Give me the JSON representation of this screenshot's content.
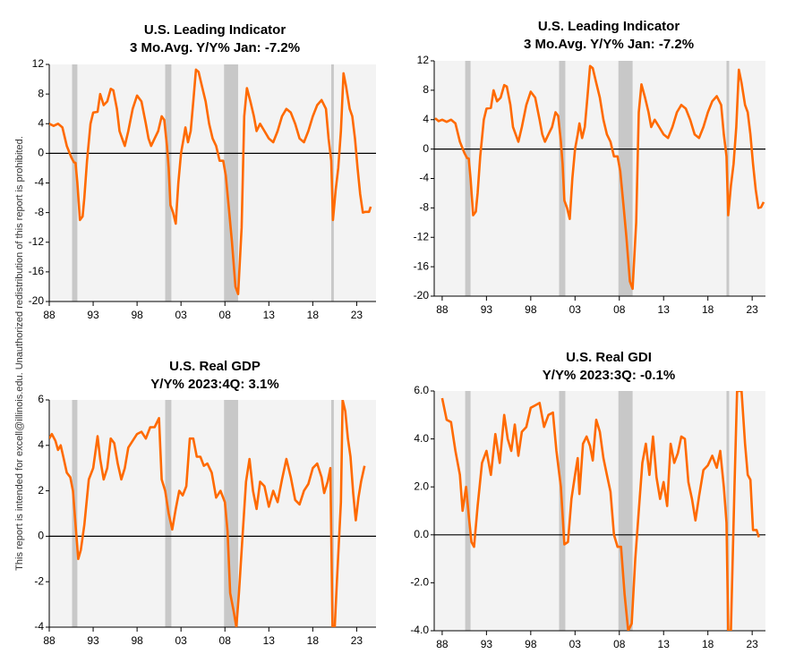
{
  "watermark": "This report is intended for excell@illinois.edu. Unauthorized redistribution of this report is prohibited.",
  "chart_data": [
    {
      "type": "line",
      "title": "U.S. Leading Indicator",
      "subtitle": "3 Mo.Avg. Y/Y%   Jan: -7.2%",
      "color": "#ff6a00",
      "recession_color": "#c8c8c8",
      "xlim": [
        1988,
        2025.2
      ],
      "ylim": [
        -20,
        12
      ],
      "xticks": [
        {
          "value": 1988,
          "label": "88"
        },
        {
          "value": 1993,
          "label": "93"
        },
        {
          "value": 1998,
          "label": "98"
        },
        {
          "value": 2003,
          "label": "03"
        },
        {
          "value": 2008,
          "label": "08"
        },
        {
          "value": 2013,
          "label": "13"
        },
        {
          "value": 2018,
          "label": "18"
        },
        {
          "value": 2023,
          "label": "23"
        }
      ],
      "yticks": [
        12,
        8,
        4,
        0,
        -4,
        -8,
        -12,
        -16,
        -20
      ],
      "recessions": [
        [
          1990.6,
          1991.2
        ],
        [
          2001.2,
          2001.9
        ],
        [
          2007.9,
          2009.5
        ],
        [
          2020.1,
          2020.4
        ]
      ],
      "x": [
        1988,
        1988.5,
        1989,
        1989.5,
        1990,
        1990.5,
        1990.8,
        1991.0,
        1991.2,
        1991.5,
        1991.8,
        1992,
        1992.3,
        1992.7,
        1993,
        1993.5,
        1993.8,
        1994.2,
        1994.6,
        1995.0,
        1995.3,
        1995.7,
        1996,
        1996.3,
        1996.6,
        1997,
        1997.5,
        1998,
        1998.5,
        1999,
        1999.3,
        1999.6,
        2000,
        2000.4,
        2000.8,
        2001.1,
        2001.4,
        2001.6,
        2001.8,
        2002.1,
        2002.4,
        2002.7,
        2003,
        2003.3,
        2003.5,
        2003.8,
        2004.1,
        2004.4,
        2004.7,
        2005,
        2005.4,
        2005.8,
        2006.2,
        2006.6,
        2007,
        2007.4,
        2007.8,
        2008.1,
        2008.5,
        2008.8,
        2009.2,
        2009.5,
        2009.9,
        2010.2,
        2010.5,
        2010.9,
        2011.3,
        2011.6,
        2012,
        2012.5,
        2013,
        2013.5,
        2014,
        2014.5,
        2015,
        2015.5,
        2016,
        2016.5,
        2017,
        2017.5,
        2018,
        2018.5,
        2019,
        2019.5,
        2019.8,
        2020.1,
        2020.3,
        2020.6,
        2020.9,
        2021.2,
        2021.5,
        2021.8,
        2022.2,
        2022.5,
        2022.8,
        2023.1,
        2023.4,
        2023.7,
        2024.0,
        2024.4,
        2024.6
      ],
      "values": [
        4,
        3.7,
        4,
        3.5,
        1,
        -0.5,
        -1.2,
        -1.3,
        -4,
        -9,
        -8.5,
        -6,
        -1,
        4,
        5.5,
        5.6,
        8,
        6.5,
        7,
        8.7,
        8.5,
        6,
        3,
        2,
        1,
        3,
        6,
        7.8,
        7,
        4,
        2,
        1,
        2,
        3,
        5,
        4.5,
        1,
        -2,
        -7,
        -8,
        -9.5,
        -4,
        0,
        2,
        3.5,
        1.5,
        3,
        7,
        11.3,
        11,
        9,
        7,
        4,
        2,
        1,
        -1,
        -1,
        -3,
        -8,
        -12,
        -18,
        -19,
        -10,
        5,
        8.8,
        7,
        5,
        3,
        4,
        3,
        2,
        1.5,
        3,
        5,
        6,
        5.5,
        4,
        2,
        1.5,
        3,
        5,
        6.5,
        7.2,
        6,
        2,
        -1,
        -9,
        -5,
        -2,
        3,
        10.8,
        9,
        6,
        5,
        2,
        -2,
        -5.5,
        -8,
        -7.9,
        -7.9,
        -7.2
      ]
    },
    {
      "type": "line",
      "title": "U.S. Leading Indicator",
      "subtitle": "3 Mo.Avg. Y/Y%   Jan: -7.2%",
      "color": "#ff6a00",
      "recession_color": "#c8c8c8",
      "xlim": [
        1987.1,
        2024.5
      ],
      "ylim": [
        -20,
        12
      ],
      "xticks": [
        {
          "value": 1988,
          "label": "88"
        },
        {
          "value": 1993,
          "label": "93"
        },
        {
          "value": 1998,
          "label": "98"
        },
        {
          "value": 2003,
          "label": "03"
        },
        {
          "value": 2008,
          "label": "08"
        },
        {
          "value": 2013,
          "label": "13"
        },
        {
          "value": 2018,
          "label": "18"
        },
        {
          "value": 2023,
          "label": "23"
        }
      ],
      "yticks": [
        12,
        8,
        4,
        0,
        -4,
        -8,
        -12,
        -16,
        -20
      ],
      "recessions": [
        [
          1990.6,
          1991.2
        ],
        [
          2001.2,
          2001.9
        ],
        [
          2007.9,
          2009.5
        ],
        [
          2020.1,
          2020.4
        ]
      ],
      "x": [
        1987.2,
        1987.6,
        1988,
        1988.5,
        1989,
        1989.5,
        1990,
        1990.5,
        1990.8,
        1991.0,
        1991.2,
        1991.5,
        1991.8,
        1992,
        1992.3,
        1992.7,
        1993,
        1993.5,
        1993.8,
        1994.2,
        1994.6,
        1995.0,
        1995.3,
        1995.7,
        1996,
        1996.3,
        1996.6,
        1997,
        1997.5,
        1998,
        1998.5,
        1999,
        1999.3,
        1999.6,
        2000,
        2000.4,
        2000.8,
        2001.1,
        2001.4,
        2001.6,
        2001.8,
        2002.1,
        2002.4,
        2002.7,
        2003,
        2003.3,
        2003.5,
        2003.8,
        2004.1,
        2004.4,
        2004.7,
        2005,
        2005.4,
        2005.8,
        2006.2,
        2006.6,
        2007,
        2007.4,
        2007.8,
        2008.1,
        2008.5,
        2008.8,
        2009.2,
        2009.5,
        2009.9,
        2010.2,
        2010.5,
        2010.9,
        2011.3,
        2011.6,
        2012,
        2012.5,
        2013,
        2013.5,
        2014,
        2014.5,
        2015,
        2015.5,
        2016,
        2016.5,
        2017,
        2017.5,
        2018,
        2018.5,
        2019,
        2019.5,
        2019.8,
        2020.1,
        2020.3,
        2020.6,
        2020.9,
        2021.2,
        2021.5,
        2021.8,
        2022.2,
        2022.5,
        2022.8,
        2023.1,
        2023.4,
        2023.7,
        2024.0,
        2024.3
      ],
      "values": [
        4.2,
        3.8,
        4,
        3.7,
        4,
        3.5,
        1,
        -0.5,
        -1.2,
        -1.3,
        -4,
        -9,
        -8.5,
        -6,
        -1,
        4,
        5.5,
        5.6,
        8,
        6.5,
        7,
        8.7,
        8.5,
        6,
        3,
        2,
        1,
        3,
        6,
        7.8,
        7,
        4,
        2,
        1,
        2,
        3,
        5,
        4.5,
        1,
        -2,
        -7,
        -8,
        -9.5,
        -4,
        0,
        2,
        3.5,
        1.5,
        3,
        7,
        11.3,
        11,
        9,
        7,
        4,
        2,
        1,
        -1,
        -1,
        -3,
        -8,
        -12,
        -18,
        -19,
        -10,
        5,
        8.8,
        7,
        5,
        3,
        4,
        3,
        2,
        1.5,
        3,
        5,
        6,
        5.5,
        4,
        2,
        1.5,
        3,
        5,
        6.5,
        7.2,
        6,
        2,
        -1,
        -9,
        -5,
        -2,
        3,
        10.8,
        9,
        6,
        5,
        2,
        -2,
        -5.5,
        -8,
        -7.9,
        -7.2
      ]
    },
    {
      "type": "line",
      "title": "U.S. Real GDP",
      "subtitle": "Y/Y%   2023:4Q:  3.1%",
      "color": "#ff6a00",
      "recession_color": "#c8c8c8",
      "xlim": [
        1988,
        2025.2
      ],
      "ylim": [
        -4,
        6
      ],
      "xticks": [
        {
          "value": 1988,
          "label": "88"
        },
        {
          "value": 1993,
          "label": "93"
        },
        {
          "value": 1998,
          "label": "98"
        },
        {
          "value": 2003,
          "label": "03"
        },
        {
          "value": 2008,
          "label": "08"
        },
        {
          "value": 2013,
          "label": "13"
        },
        {
          "value": 2018,
          "label": "18"
        },
        {
          "value": 2023,
          "label": "23"
        }
      ],
      "yticks": [
        6,
        4,
        2,
        0,
        -2,
        -4
      ],
      "recessions": [
        [
          1990.6,
          1991.2
        ],
        [
          2001.2,
          2001.9
        ],
        [
          2007.9,
          2009.5
        ],
        [
          2020.1,
          2020.4
        ]
      ],
      "x": [
        1988,
        1988.3,
        1988.7,
        1989,
        1989.3,
        1989.6,
        1990,
        1990.4,
        1990.7,
        1991,
        1991.3,
        1991.6,
        1992,
        1992.5,
        1993,
        1993.5,
        1993.8,
        1994.2,
        1994.6,
        1995,
        1995.4,
        1995.8,
        1996.2,
        1996.6,
        1997,
        1997.5,
        1998,
        1998.5,
        1999,
        1999.5,
        2000,
        2000.5,
        2000.8,
        2001.2,
        2001.6,
        2002,
        2002.4,
        2002.8,
        2003.2,
        2003.6,
        2004,
        2004.4,
        2004.8,
        2005.2,
        2005.6,
        2006,
        2006.5,
        2007,
        2007.5,
        2008,
        2008.3,
        2008.6,
        2009,
        2009.3,
        2009.6,
        2010,
        2010.4,
        2010.8,
        2011.2,
        2011.6,
        2012,
        2012.5,
        2013,
        2013.5,
        2014,
        2014.5,
        2015,
        2015.5,
        2016,
        2016.5,
        2017,
        2017.5,
        2018,
        2018.5,
        2019,
        2019.3,
        2019.7,
        2020,
        2020.25,
        2020.5,
        2020.75,
        2021.2,
        2021.4,
        2021.7,
        2022,
        2022.3,
        2022.6,
        2022.9,
        2023.2,
        2023.5,
        2023.9
      ],
      "values": [
        4.3,
        4.5,
        4.2,
        3.8,
        4.0,
        3.5,
        2.8,
        2.6,
        2.0,
        0.5,
        -1,
        -0.6,
        0.5,
        2.5,
        3,
        4.4,
        3.4,
        2.5,
        3,
        4.3,
        4.1,
        3.2,
        2.5,
        3.0,
        3.9,
        4.2,
        4.5,
        4.6,
        4.3,
        4.8,
        4.8,
        5.2,
        2.5,
        2.0,
        1.0,
        0.3,
        1.2,
        2.0,
        1.8,
        2.2,
        4.3,
        4.3,
        3.5,
        3.5,
        3.1,
        3.2,
        2.8,
        1.7,
        2.0,
        1.5,
        0.2,
        -2.5,
        -3.3,
        -4,
        -2.5,
        0,
        2.4,
        3.4,
        2,
        1.2,
        2.4,
        2.2,
        1.3,
        2.0,
        1.5,
        2.5,
        3.4,
        2.6,
        1.6,
        1.4,
        2.0,
        2.3,
        3.0,
        3.2,
        2.6,
        1.9,
        2.4,
        3.0,
        -4,
        -4,
        -2,
        1.5,
        6,
        5.5,
        4.3,
        3.5,
        1.9,
        0.7,
        1.7,
        2.4,
        3.1
      ]
    },
    {
      "type": "line",
      "title": "U.S. Real GDI",
      "subtitle": "Y/Y%   2023:3Q:  -0.1%",
      "color": "#ff6a00",
      "recession_color": "#c8c8c8",
      "xlim": [
        1987.1,
        2024.5
      ],
      "ylim": [
        -4,
        6
      ],
      "xticks": [
        {
          "value": 1988,
          "label": "88"
        },
        {
          "value": 1993,
          "label": "93"
        },
        {
          "value": 1998,
          "label": "98"
        },
        {
          "value": 2003,
          "label": "03"
        },
        {
          "value": 2008,
          "label": "08"
        },
        {
          "value": 2013,
          "label": "13"
        },
        {
          "value": 2018,
          "label": "18"
        },
        {
          "value": 2023,
          "label": "23"
        }
      ],
      "yticks": [
        {
          "value": 6,
          "label": "6.0"
        },
        {
          "value": 4,
          "label": "4.0"
        },
        {
          "value": 2,
          "label": "2.0"
        },
        {
          "value": 0,
          "label": "0.0"
        },
        {
          "value": -2,
          "label": "-2.0"
        },
        {
          "value": -4,
          "label": "-4.0"
        }
      ],
      "recessions": [
        [
          1990.6,
          1991.2
        ],
        [
          2001.2,
          2001.9
        ],
        [
          2007.9,
          2009.5
        ],
        [
          2020.1,
          2020.4
        ]
      ],
      "x": [
        1988,
        1988.5,
        1989,
        1989.5,
        1990,
        1990.3,
        1990.7,
        1991,
        1991.3,
        1991.6,
        1992,
        1992.5,
        1993,
        1993.5,
        1994,
        1994.5,
        1995,
        1995.4,
        1995.8,
        1996.2,
        1996.6,
        1997,
        1997.5,
        1998,
        1998.5,
        1999,
        1999.5,
        2000,
        2000.5,
        2000.9,
        2001.4,
        2001.8,
        2002.2,
        2002.6,
        2003,
        2003.3,
        2003.5,
        2003.9,
        2004.3,
        2004.7,
        2005,
        2005.4,
        2005.8,
        2006.2,
        2006.6,
        2007,
        2007.4,
        2007.8,
        2008.2,
        2008.6,
        2009,
        2009.4,
        2009.8,
        2010.2,
        2010.6,
        2011,
        2011.4,
        2011.8,
        2012.2,
        2012.6,
        2013,
        2013.4,
        2013.8,
        2014.2,
        2014.6,
        2015,
        2015.4,
        2015.8,
        2016.2,
        2016.6,
        2017,
        2017.5,
        2018,
        2018.5,
        2019,
        2019.4,
        2019.8,
        2020.1,
        2020.3,
        2020.6,
        2021,
        2021.3,
        2021.8,
        2022.2,
        2022.5,
        2022.8,
        2023.1,
        2023.5,
        2023.75
      ],
      "values": [
        5.7,
        4.8,
        4.7,
        3.5,
        2.5,
        1.0,
        2.0,
        0.8,
        -0.3,
        -0.5,
        1.2,
        3.0,
        3.5,
        2.5,
        4.2,
        3.0,
        5.0,
        4.0,
        3.5,
        4.6,
        3.3,
        4.3,
        4.5,
        5.3,
        5.4,
        5.5,
        4.5,
        5.0,
        5.1,
        3.5,
        2.0,
        -0.4,
        -0.3,
        1.5,
        2.5,
        3.2,
        1.7,
        3.8,
        4.1,
        3.7,
        3.1,
        4.8,
        4.3,
        3.2,
        2.5,
        1.8,
        0,
        -0.5,
        -0.5,
        -2.5,
        -4,
        -3.7,
        -1,
        1.0,
        3.0,
        3.8,
        2.5,
        4.1,
        2.4,
        1.5,
        2.2,
        1.2,
        3.8,
        3.0,
        3.4,
        4.1,
        4.0,
        2.2,
        1.5,
        0.6,
        1.6,
        2.7,
        2.9,
        3.3,
        2.8,
        3.5,
        2.0,
        0.5,
        -4,
        -4,
        2,
        6,
        6,
        3.8,
        2.5,
        2.3,
        0.2,
        0.2,
        -0.1
      ]
    }
  ]
}
